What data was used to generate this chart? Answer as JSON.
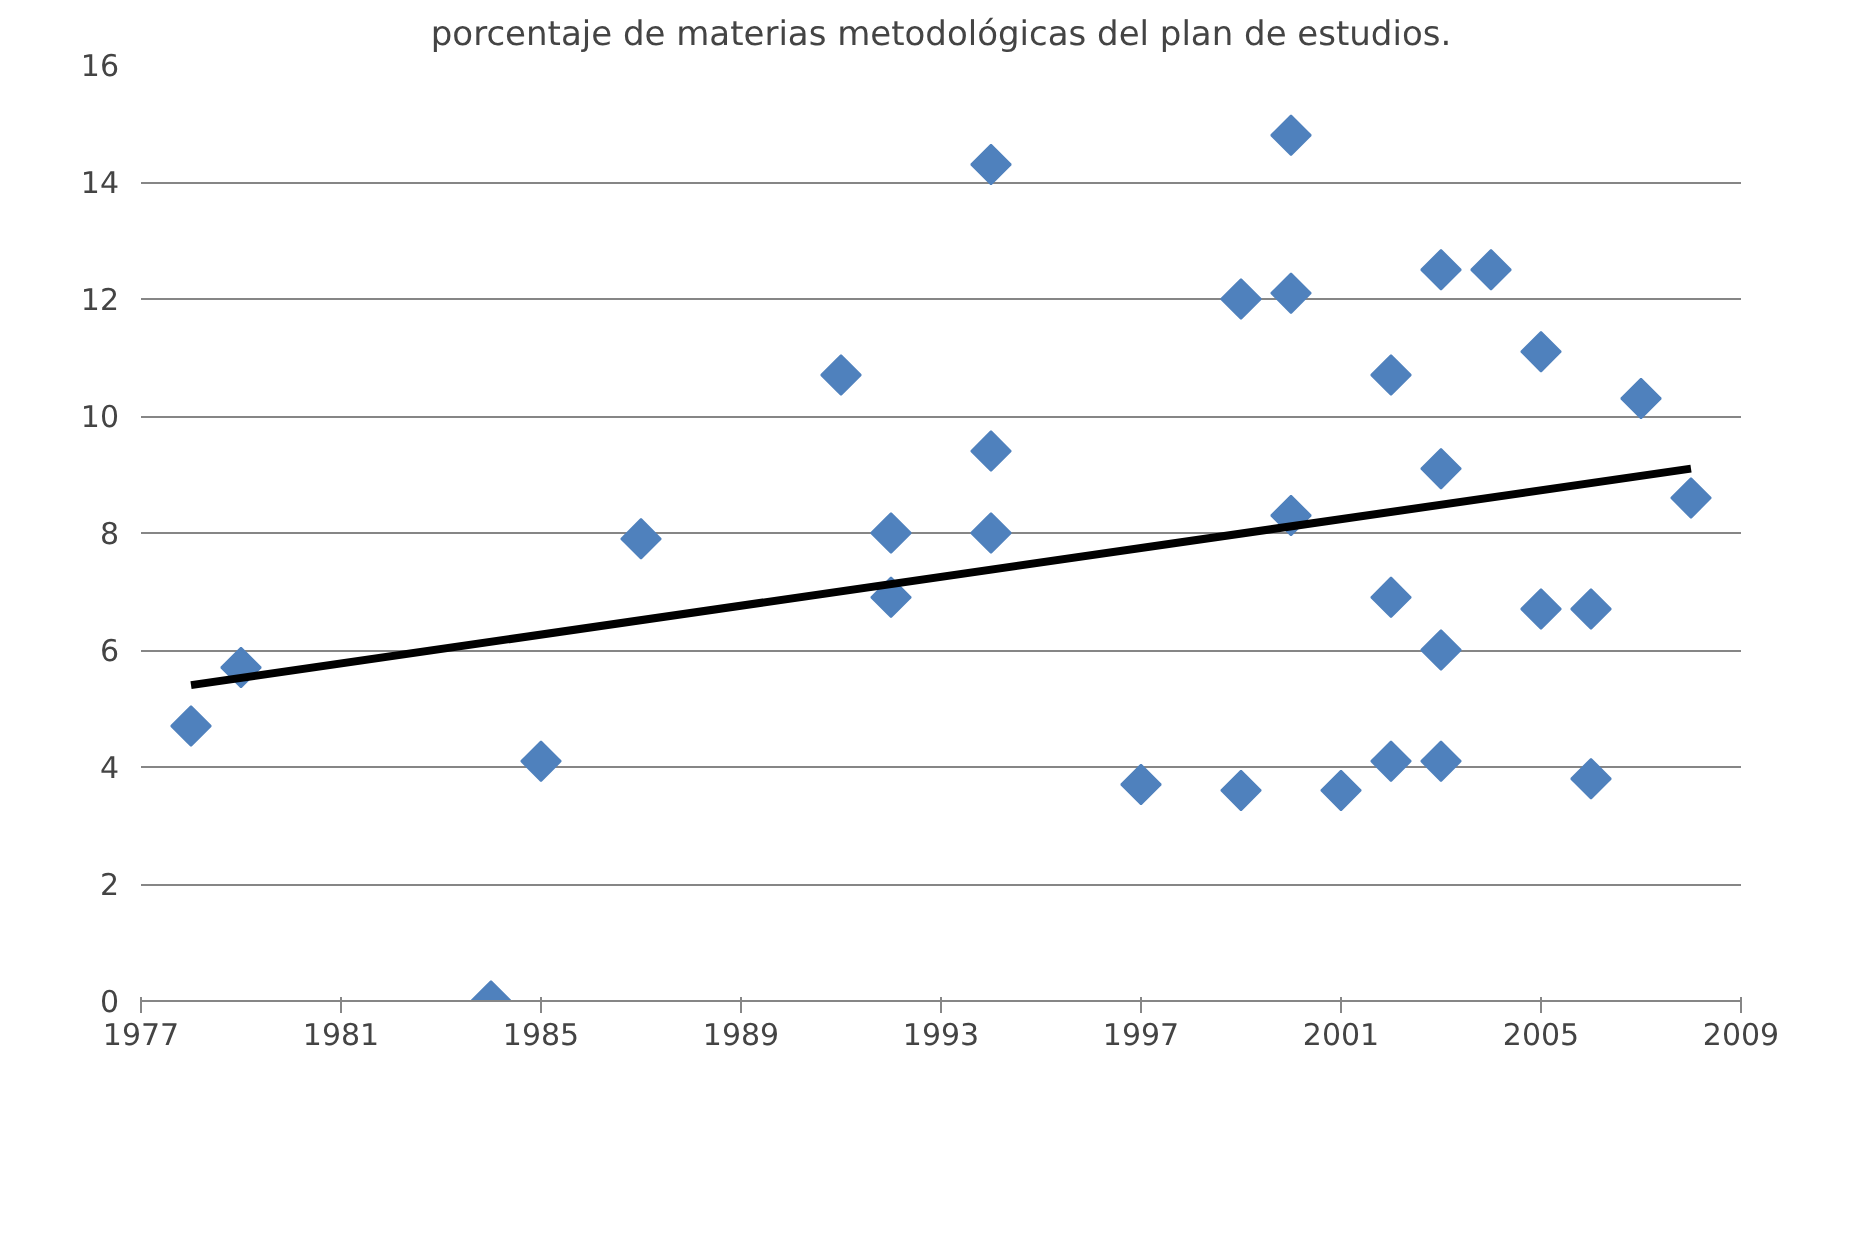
{
  "chart_data": {
    "type": "scatter",
    "title": "porcentaje de materias metodológicas del plan de estudios.",
    "xlim": [
      1977,
      2009
    ],
    "xticks": [
      1977,
      1981,
      1985,
      1989,
      1993,
      1997,
      2001,
      2005,
      2009
    ],
    "ylim": [
      0,
      16
    ],
    "yticks": [
      0,
      2,
      4,
      6,
      8,
      10,
      12,
      14,
      16
    ],
    "grid": "y",
    "marker": "diamond",
    "series": [
      {
        "color": "#4f81bd",
        "x": [
          1978,
          1979,
          1984,
          1985,
          1987,
          1991,
          1992,
          1992,
          1994,
          1994,
          1994,
          1997,
          1999,
          1999,
          2000,
          2000,
          2000,
          2001,
          2002,
          2002,
          2002,
          2003,
          2003,
          2003,
          2003,
          2004,
          2005,
          2005,
          2006,
          2006,
          2007,
          2008
        ],
        "values": [
          4.7,
          5.7,
          0,
          4.1,
          7.9,
          10.7,
          8.0,
          6.9,
          14.3,
          9.4,
          8.0,
          3.7,
          12.0,
          3.6,
          14.8,
          12.1,
          8.3,
          3.6,
          10.7,
          6.9,
          4.1,
          12.5,
          9.1,
          6.0,
          4.1,
          12.5,
          11.1,
          6.7,
          6.7,
          3.8,
          10.3,
          8.6
        ]
      },
      {
        "type": "line",
        "color": "#000000",
        "marker": "none",
        "x": [
          1978,
          2008
        ],
        "values": [
          5.4,
          9.1
        ]
      }
    ]
  }
}
